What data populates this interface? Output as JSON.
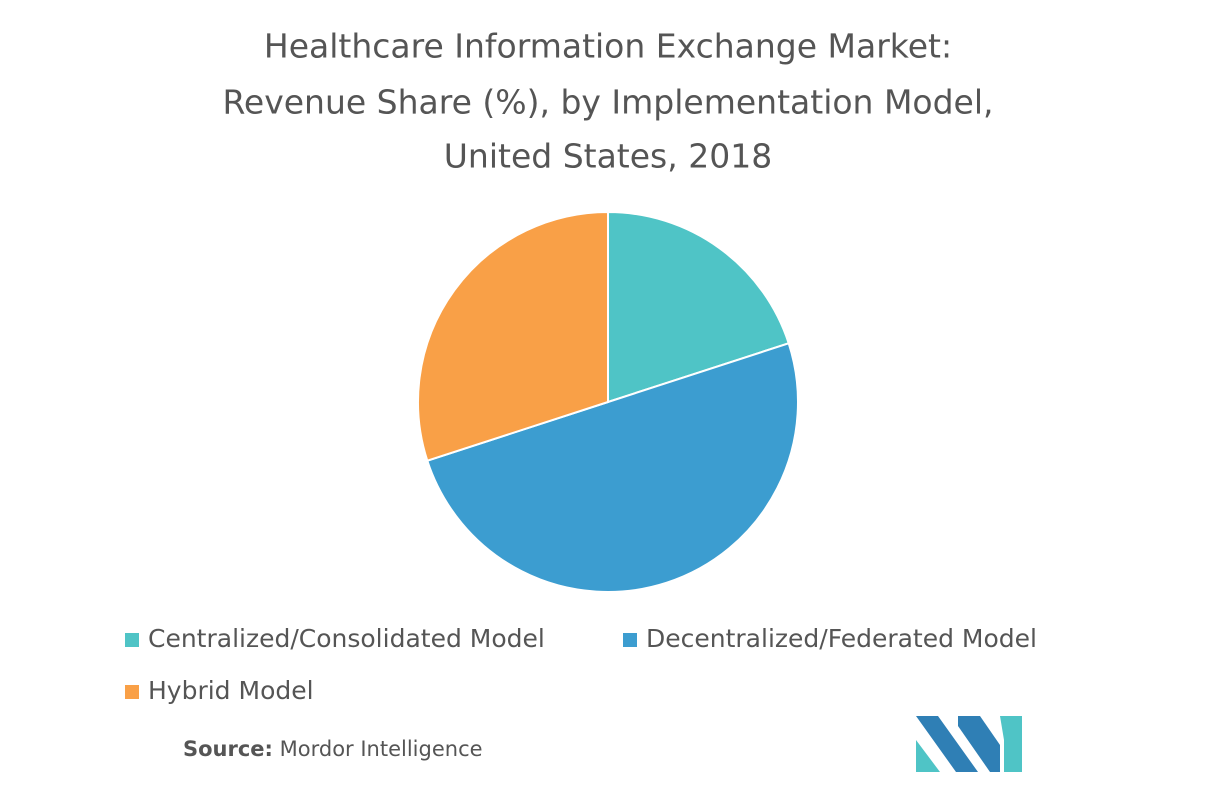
{
  "chart_data": {
    "type": "pie",
    "title": [
      "Healthcare Information Exchange Market:",
      "Revenue Share (%), by Implementation Model,",
      "United States, 2018"
    ],
    "categories": [
      "Centralized/Consolidated Model",
      "Decentralized/Federated Model",
      "Hybrid Model"
    ],
    "values": [
      20,
      50,
      30
    ],
    "colors": [
      "#4fc4c6",
      "#3c9dd0",
      "#f9a047"
    ],
    "source_label": "Source:",
    "source": "Mordor Intelligence"
  }
}
